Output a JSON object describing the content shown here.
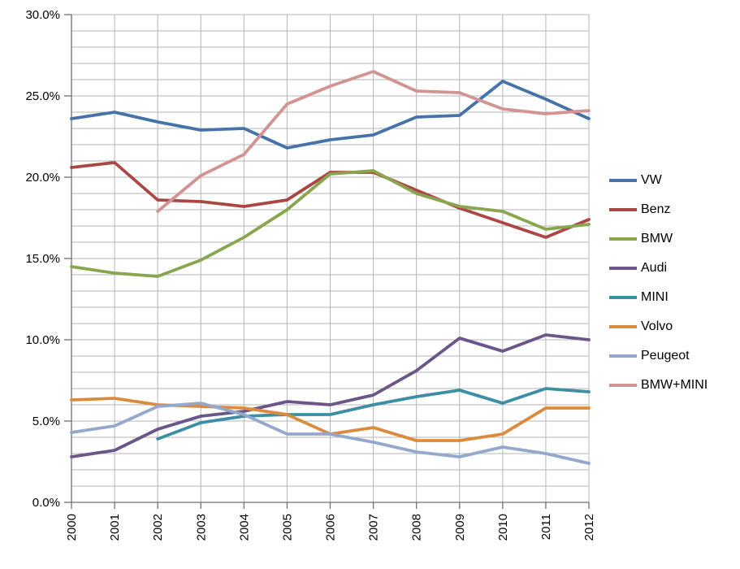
{
  "chart_data": {
    "type": "line",
    "title": "",
    "xlabel": "",
    "ylabel": "",
    "x_labels": [
      "2000",
      "2001",
      "2002",
      "2003",
      "2004",
      "2005",
      "2006",
      "2007",
      "2008",
      "2009",
      "2010",
      "2011",
      "2012"
    ],
    "ylim": [
      0,
      30
    ],
    "y_minor_step": 1,
    "y_major_step": 5,
    "grid": true,
    "legend_position": "right",
    "y_ticks": [
      {
        "value": 30,
        "label": "30.0%"
      },
      {
        "value": 25,
        "label": "25.0%"
      },
      {
        "value": 20,
        "label": "20.0%"
      },
      {
        "value": 15,
        "label": "15.0%"
      },
      {
        "value": 10,
        "label": "10.0%"
      },
      {
        "value": 5,
        "label": "5.0%"
      },
      {
        "value": 0,
        "label": "0.0%"
      }
    ],
    "series": [
      {
        "name": "VW",
        "color": "#4573A7",
        "values": [
          23.6,
          24.0,
          23.4,
          22.9,
          23.0,
          21.8,
          22.3,
          22.6,
          23.7,
          23.8,
          25.9,
          24.8,
          23.6
        ]
      },
      {
        "name": "Benz",
        "color": "#AA4643",
        "values": [
          20.6,
          20.9,
          18.6,
          18.5,
          18.2,
          18.6,
          20.3,
          20.3,
          19.2,
          18.1,
          17.2,
          16.3,
          17.4
        ]
      },
      {
        "name": "BMW",
        "color": "#89A54E",
        "values": [
          14.5,
          14.1,
          13.9,
          14.9,
          16.3,
          18.0,
          20.2,
          20.4,
          19.0,
          18.2,
          17.9,
          16.8,
          17.1
        ]
      },
      {
        "name": "Audi",
        "color": "#6B5689",
        "values": [
          2.8,
          3.2,
          4.5,
          5.3,
          5.6,
          6.2,
          6.0,
          6.6,
          8.1,
          10.1,
          9.3,
          10.3,
          10.0
        ]
      },
      {
        "name": "MINI",
        "color": "#3D8EA5",
        "values": [
          null,
          null,
          3.9,
          4.9,
          5.3,
          5.4,
          5.4,
          6.0,
          6.5,
          6.9,
          6.1,
          7.0,
          6.8
        ]
      },
      {
        "name": "Volvo",
        "color": "#DB8B3D",
        "values": [
          6.3,
          6.4,
          6.0,
          5.9,
          5.8,
          5.4,
          4.2,
          4.6,
          3.8,
          3.8,
          4.2,
          5.8,
          5.8
        ]
      },
      {
        "name": "Peugeot",
        "color": "#94A8CE",
        "values": [
          4.3,
          4.7,
          5.9,
          6.1,
          5.4,
          4.2,
          4.2,
          3.7,
          3.1,
          2.8,
          3.4,
          3.0,
          2.4
        ]
      },
      {
        "name": "BMW+MINI",
        "color": "#D29392",
        "values": [
          null,
          null,
          17.9,
          20.1,
          21.4,
          24.5,
          25.6,
          26.5,
          25.3,
          25.2,
          24.2,
          23.9,
          24.1
        ]
      }
    ]
  },
  "colors": {
    "background": "#FFFFFF",
    "grid": "#B6B6B6",
    "axis": "#707070",
    "text": "#000000"
  }
}
